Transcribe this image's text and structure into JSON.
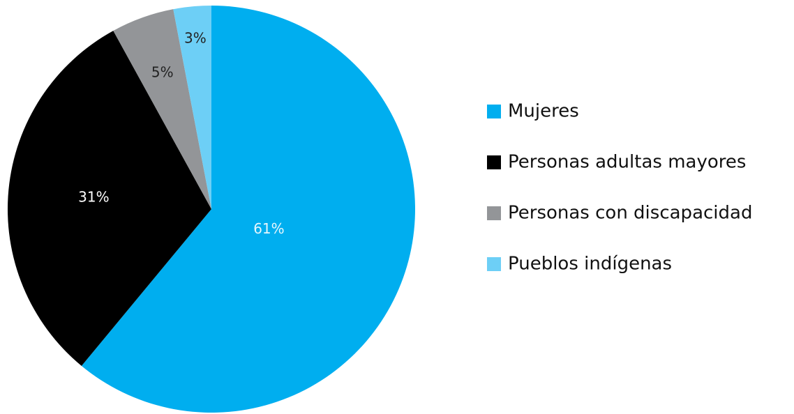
{
  "chart_data": {
    "type": "pie",
    "categories": [
      "Mujeres",
      "Personas adultas mayores",
      "Personas con discapacidad",
      "Pueblos indígenas"
    ],
    "values": [
      61,
      31,
      5,
      3
    ],
    "value_labels": [
      "61%",
      "31%",
      "5%",
      "3%"
    ],
    "colors": [
      "#00aeef",
      "#000000",
      "#939598",
      "#6dcff6"
    ],
    "legend": "right"
  }
}
